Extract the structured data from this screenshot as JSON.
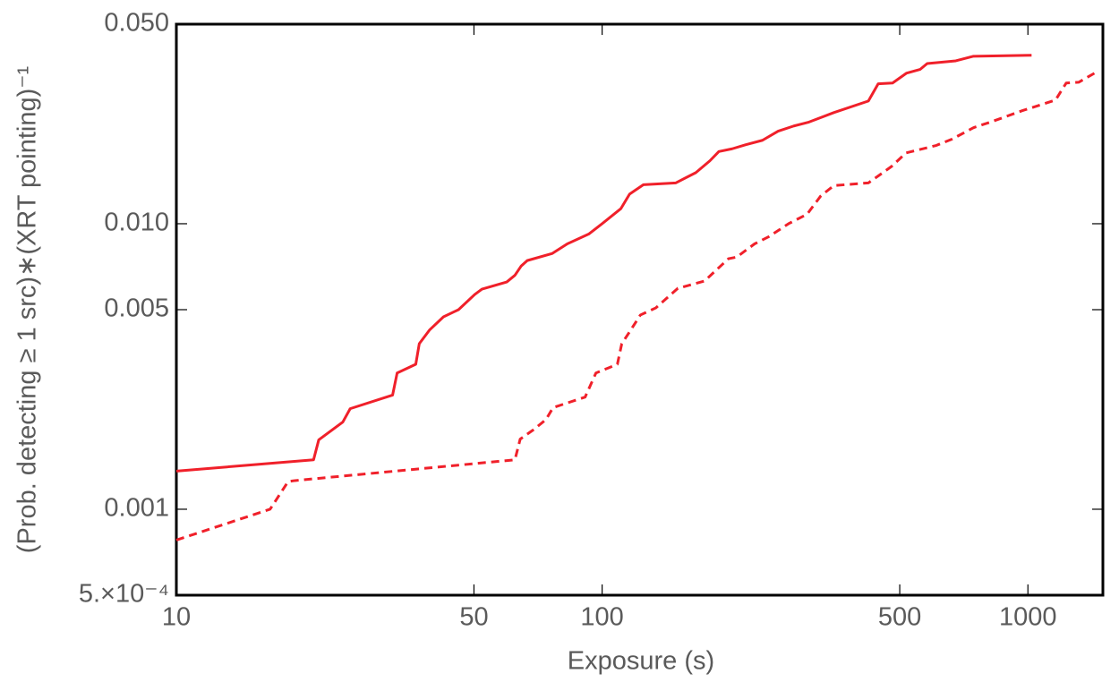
{
  "chart_data": {
    "type": "line",
    "xlabel": "Exposure (s)",
    "ylabel": "(Prob. detecting ≥ 1 src)∗(XRT pointing)⁻¹",
    "xscale": "log",
    "yscale": "log",
    "xlim": [
      10,
      1500
    ],
    "ylim": [
      0.0005,
      0.05
    ],
    "xticks": [
      10,
      50,
      100,
      500,
      1000
    ],
    "yticks": [
      {
        "value": 0.0005,
        "label": "5.×10⁻⁴"
      },
      0.001,
      0.005,
      {
        "value": 0.01,
        "label": "0.010"
      },
      {
        "value": 0.05,
        "label": "0.050"
      }
    ],
    "series": [
      {
        "color": "#f0202a",
        "dash": false,
        "x": [
          10,
          21,
          21.6,
          24.6,
          25.6,
          32.2,
          33.0,
          36.5,
          37.2,
          39.3,
          42.4,
          46.0,
          50.2,
          52.2,
          59.7,
          62.4,
          64.5,
          66.7,
          76.4,
          82.8,
          93.0,
          100,
          110.7,
          116,
          125,
          149,
          166,
          179,
          188,
          202,
          217,
          238,
          259,
          282,
          306,
          350,
          422,
          445,
          481,
          519,
          558,
          580,
          677,
          745,
          1020
        ],
        "values": [
          0.00136,
          0.00149,
          0.00175,
          0.00202,
          0.00225,
          0.00251,
          0.003,
          0.00322,
          0.0038,
          0.00424,
          0.00472,
          0.005,
          0.00565,
          0.0059,
          0.00625,
          0.0066,
          0.0071,
          0.00743,
          0.00787,
          0.0085,
          0.0092,
          0.01,
          0.0113,
          0.0127,
          0.0137,
          0.0139,
          0.0151,
          0.0166,
          0.0179,
          0.0183,
          0.0189,
          0.0196,
          0.0211,
          0.022,
          0.0227,
          0.0245,
          0.0269,
          0.0309,
          0.0311,
          0.0337,
          0.0347,
          0.0364,
          0.0372,
          0.0386,
          0.0389
        ]
      },
      {
        "color": "#f0202a",
        "dash": true,
        "x": [
          10,
          16.6,
          18.3,
          19.0,
          62.4,
          64.2,
          68.7,
          73.8,
          76.7,
          91.2,
          96.7,
          108.6,
          111.2,
          116.7,
          123,
          133.6,
          150.6,
          174,
          183,
          198,
          207,
          228,
          246,
          274,
          303,
          326,
          350,
          422,
          448,
          479,
          517,
          609,
          664,
          745,
          817,
          971,
          1161,
          1230,
          1316,
          1460
        ],
        "values": [
          0.00078,
          0.001,
          0.00125,
          0.00126,
          0.00149,
          0.00176,
          0.00189,
          0.00206,
          0.00227,
          0.00247,
          0.003,
          0.00322,
          0.0038,
          0.00424,
          0.00479,
          0.00507,
          0.00594,
          0.0063,
          0.00676,
          0.00754,
          0.00764,
          0.0085,
          0.009,
          0.01,
          0.0108,
          0.0125,
          0.0136,
          0.0139,
          0.0148,
          0.0159,
          0.0177,
          0.0188,
          0.0198,
          0.0217,
          0.0227,
          0.0249,
          0.0271,
          0.0311,
          0.0313,
          0.0342
        ]
      }
    ]
  }
}
